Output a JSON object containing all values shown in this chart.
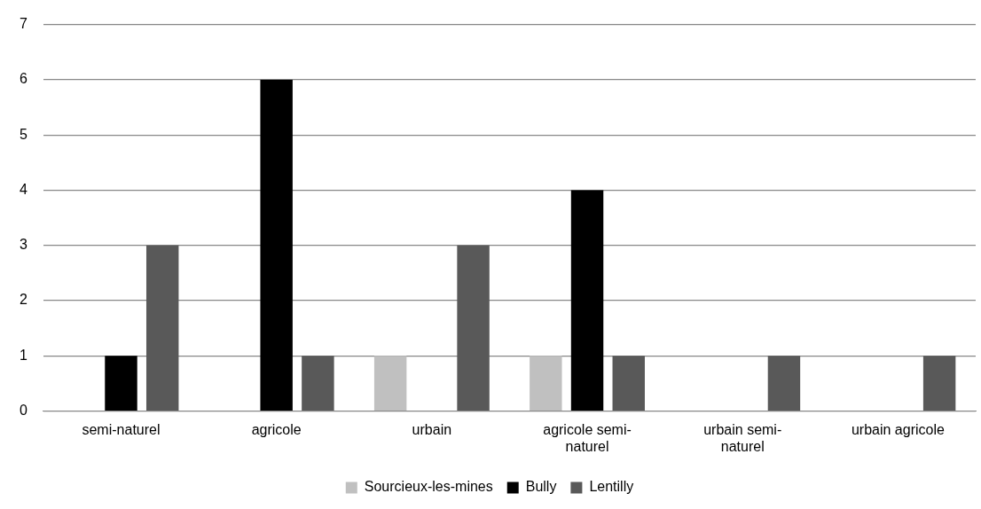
{
  "chart_data": {
    "type": "bar",
    "categories": [
      "semi-naturel",
      "agricole",
      "urbain",
      "agricole semi-naturel",
      "urbain semi-naturel",
      "urbain agricole"
    ],
    "series": [
      {
        "name": "Sourcieux-les-mines",
        "color": "#c0c0c0",
        "values": [
          0,
          0,
          1,
          1,
          0,
          0
        ]
      },
      {
        "name": "Bully",
        "color": "#000000",
        "values": [
          1,
          6,
          0,
          4,
          0,
          0
        ]
      },
      {
        "name": "Lentilly",
        "color": "#595959",
        "values": [
          3,
          1,
          3,
          1,
          1,
          1
        ]
      }
    ],
    "ylim": [
      0,
      7
    ],
    "yticks": [
      0,
      1,
      2,
      3,
      4,
      5,
      6,
      7
    ],
    "grid": "y",
    "legend": "bottom"
  }
}
